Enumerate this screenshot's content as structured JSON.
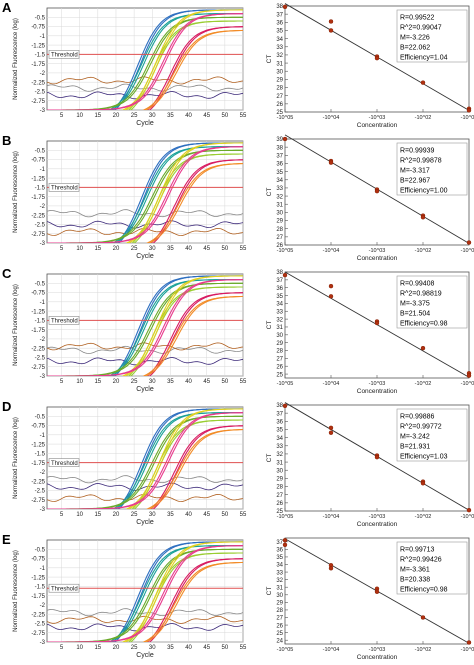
{
  "panels": [
    {
      "letter": "A",
      "amplification": {
        "type": "line",
        "xlabel": "Cycle",
        "ylabel": "Normalized Fluorescence (log)",
        "xticks": [
          5,
          10,
          15,
          20,
          25,
          30,
          35,
          40,
          45,
          50,
          55
        ],
        "xlim": [
          1,
          55
        ],
        "yticks": [
          "-0.5",
          "-0.75",
          "-1",
          "-1.25",
          "-1.5",
          "-1.75",
          "-2",
          "-2.25",
          "-2.5",
          "-2.75",
          "-3"
        ],
        "ylim": [
          -3,
          -0.25
        ],
        "threshold_label": "Threshold",
        "threshold_value": -1.5,
        "curve_midpoints": [
          26,
          27,
          29,
          30,
          31,
          33,
          35,
          36
        ],
        "noise_baselines": [
          -2.4,
          -2.6,
          -2.2
        ]
      },
      "standard_curve": {
        "type": "scatter",
        "xlabel": "Concentration",
        "ylabel": "CT",
        "xticks": [
          "-10^05",
          "-10^04",
          "-10^03",
          "-10^02",
          "-10^01"
        ],
        "xlim": [
          5,
          1
        ],
        "yticks": [
          25,
          26,
          27,
          28,
          29,
          30,
          31,
          32,
          33,
          34,
          35,
          36,
          37,
          38
        ],
        "ylim": [
          25,
          38
        ],
        "points": [
          [
            5,
            37.9
          ],
          [
            4,
            36.1
          ],
          [
            4,
            35.0
          ],
          [
            3,
            31.8
          ],
          [
            3,
            31.6
          ],
          [
            2,
            28.6
          ],
          [
            1,
            25.4
          ],
          [
            1,
            25.2
          ]
        ],
        "line": [
          [
            5,
            38.3
          ],
          [
            1,
            25.2
          ]
        ],
        "stats": [
          "R=0.99522",
          "R^2=0.99047",
          "M=-3.226",
          "B=22.062",
          "Efficiency=1.04"
        ]
      }
    },
    {
      "letter": "B",
      "amplification": {
        "type": "line",
        "xlabel": "Cycle",
        "ylabel": "Normalized Fluorescence (log)",
        "xticks": [
          5,
          10,
          15,
          20,
          25,
          30,
          35,
          40,
          45,
          50,
          55
        ],
        "xlim": [
          1,
          55
        ],
        "yticks": [
          "-0.5",
          "-0.75",
          "-1",
          "-1.25",
          "-1.5",
          "-1.75",
          "-2",
          "-2.25",
          "-2.5",
          "-2.75",
          "-3"
        ],
        "ylim": [
          -3,
          -0.25
        ],
        "threshold_label": "Threshold",
        "threshold_value": -1.5,
        "curve_midpoints": [
          27,
          28,
          30,
          31,
          32,
          34,
          36,
          37
        ],
        "noise_baselines": [
          -2.2,
          -2.5,
          -2.7
        ]
      },
      "standard_curve": {
        "type": "scatter",
        "xlabel": "Concentration",
        "ylabel": "CT",
        "xticks": [
          "-10^05",
          "-10^04",
          "-10^03",
          "-10^02",
          "-10^01"
        ],
        "xlim": [
          5,
          1
        ],
        "yticks": [
          26,
          27,
          28,
          29,
          30,
          31,
          32,
          33,
          34,
          35,
          36,
          37,
          38,
          39
        ],
        "ylim": [
          26,
          39
        ],
        "points": [
          [
            5,
            39.0
          ],
          [
            4,
            36.3
          ],
          [
            4,
            36.1
          ],
          [
            3,
            32.8
          ],
          [
            3,
            32.6
          ],
          [
            2,
            29.6
          ],
          [
            2,
            29.4
          ],
          [
            1,
            26.3
          ]
        ],
        "line": [
          [
            5,
            39.5
          ],
          [
            1,
            26.2
          ]
        ],
        "stats": [
          "R=0.99939",
          "R^2=0.99878",
          "M=-3.317",
          "B=22.967",
          "Efficiency=1.00"
        ]
      }
    },
    {
      "letter": "C",
      "amplification": {
        "type": "line",
        "xlabel": "Cycle",
        "ylabel": "Normalized Fluorescence (log)",
        "xticks": [
          5,
          10,
          15,
          20,
          25,
          30,
          35,
          40,
          45,
          50,
          55
        ],
        "xlim": [
          1,
          55
        ],
        "yticks": [
          "-0.5",
          "-0.75",
          "-1",
          "-1.25",
          "-1.5",
          "-1.75",
          "-2",
          "-2.25",
          "-2.5",
          "-2.75",
          "-3"
        ],
        "ylim": [
          -3,
          -0.25
        ],
        "threshold_label": "Threshold",
        "threshold_value": -1.5,
        "curve_midpoints": [
          26,
          27,
          29,
          30,
          31,
          33,
          35,
          36
        ],
        "noise_baselines": [
          -2.3,
          -2.6,
          -2.2
        ]
      },
      "standard_curve": {
        "type": "scatter",
        "xlabel": "Concentration",
        "ylabel": "CT",
        "xticks": [
          "-10^05",
          "-10^04",
          "-10^03",
          "-10^02",
          "-10^01"
        ],
        "xlim": [
          5,
          1
        ],
        "yticks": [
          25,
          26,
          27,
          28,
          29,
          30,
          31,
          32,
          33,
          34,
          35,
          36,
          37,
          38
        ],
        "ylim": [
          24.5,
          38
        ],
        "points": [
          [
            5,
            37.6
          ],
          [
            4,
            36.2
          ],
          [
            4,
            34.9
          ],
          [
            3,
            31.7
          ],
          [
            3,
            31.5
          ],
          [
            2,
            28.3
          ],
          [
            1,
            25.1
          ],
          [
            1,
            24.8
          ]
        ],
        "line": [
          [
            5,
            38.0
          ],
          [
            1,
            24.6
          ]
        ],
        "stats": [
          "R=0.99408",
          "R^2=0.98819",
          "M=-3.375",
          "B=21.504",
          "Efficiency=0.98"
        ]
      }
    },
    {
      "letter": "D",
      "amplification": {
        "type": "line",
        "xlabel": "Cycle",
        "ylabel": "Normalized Fluorescence (log)",
        "xticks": [
          5,
          10,
          15,
          20,
          25,
          30,
          35,
          40,
          45,
          50,
          55
        ],
        "xlim": [
          1,
          55
        ],
        "yticks": [
          "-0.5",
          "-0.75",
          "-1",
          "-1.25",
          "-1.5",
          "-1.75",
          "-2",
          "-2.25",
          "-2.5",
          "-2.75",
          "-3"
        ],
        "ylim": [
          -3,
          -0.25
        ],
        "threshold_label": "Threshold",
        "threshold_value": -1.75,
        "curve_midpoints": [
          27,
          28,
          30,
          31,
          32,
          34,
          36,
          37
        ],
        "noise_baselines": [
          -2.2,
          -2.4,
          -2.7
        ]
      },
      "standard_curve": {
        "type": "scatter",
        "xlabel": "Concentration",
        "ylabel": "CT",
        "xticks": [
          "-10^05",
          "-10^04",
          "-10^03",
          "-10^02",
          "-10^01"
        ],
        "xlim": [
          5,
          1
        ],
        "yticks": [
          25,
          26,
          27,
          28,
          29,
          30,
          31,
          32,
          33,
          34,
          35,
          36,
          37,
          38
        ],
        "ylim": [
          25,
          38
        ],
        "points": [
          [
            5,
            37.9
          ],
          [
            4,
            35.2
          ],
          [
            4,
            34.6
          ],
          [
            3,
            31.8
          ],
          [
            3,
            31.6
          ],
          [
            2,
            28.6
          ],
          [
            2,
            28.4
          ],
          [
            1,
            25.1
          ]
        ],
        "line": [
          [
            5,
            38.3
          ],
          [
            1,
            25.1
          ]
        ],
        "stats": [
          "R=0.99886",
          "R^2=0.99772",
          "M=-3.242",
          "B=21.931",
          "Efficiency=1.03"
        ]
      }
    },
    {
      "letter": "E",
      "amplification": {
        "type": "line",
        "xlabel": "Cycle",
        "ylabel": "Normalized Fluorescence (log)",
        "xticks": [
          5,
          10,
          15,
          20,
          25,
          30,
          35,
          40,
          45,
          50,
          55
        ],
        "xlim": [
          1,
          55
        ],
        "yticks": [
          "-0.5",
          "-0.75",
          "-1",
          "-1.25",
          "-1.5",
          "-1.75",
          "-2",
          "-2.25",
          "-2.5",
          "-2.75",
          "-3"
        ],
        "ylim": [
          -3,
          -0.25
        ],
        "threshold_label": "Threshold",
        "threshold_value": -1.55,
        "curve_midpoints": [
          26,
          27,
          29,
          30,
          31,
          33,
          35,
          36
        ],
        "noise_baselines": [
          -2.2,
          -2.6,
          -2.4
        ]
      },
      "standard_curve": {
        "type": "scatter",
        "xlabel": "Concentration",
        "ylabel": "CT",
        "xticks": [
          "-10^05",
          "-10^04",
          "-10^03",
          "-10^02",
          "-10^01"
        ],
        "xlim": [
          5,
          1
        ],
        "yticks": [
          24,
          25,
          26,
          27,
          28,
          29,
          30,
          31,
          32,
          33,
          34,
          35,
          36,
          37
        ],
        "ylim": [
          23.5,
          37.5
        ],
        "points": [
          [
            5,
            37.2
          ],
          [
            5,
            36.6
          ],
          [
            4,
            33.9
          ],
          [
            4,
            33.5
          ],
          [
            3,
            30.8
          ],
          [
            3,
            30.4
          ],
          [
            2,
            27.0
          ],
          [
            1,
            23.7
          ]
        ],
        "line": [
          [
            5,
            37.4
          ],
          [
            1,
            23.6
          ]
        ],
        "stats": [
          "R=0.99713",
          "R^2=0.99426",
          "M=-3.361",
          "B=20.338",
          "Efficiency=0.98"
        ]
      }
    }
  ],
  "colors": {
    "curves": [
      "#2e6fc0",
      "#1aa198",
      "#6aaa2a",
      "#9acd32",
      "#e0d020",
      "#e83a8c",
      "#d81b60",
      "#f28c28"
    ],
    "noise": [
      "#888888",
      "#3d2a7a",
      "#b06020"
    ],
    "threshold": "#e05050",
    "regression_line": "#333333",
    "points": "#b03010",
    "grid": "#d8d8d8",
    "axis": "#555555"
  }
}
